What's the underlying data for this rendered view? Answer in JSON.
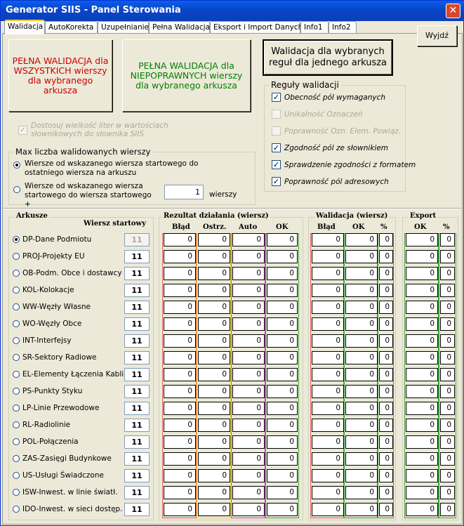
{
  "title": "Generator SIIS - Panel Sterowania",
  "tabs": [
    "Walidacja",
    "AutoKorekta",
    "Uzupełnianie",
    "Pełna Walidacja",
    "Eksport i Import Danych",
    "Info1",
    "Info2"
  ],
  "exit_label": "Wyjdź",
  "buttons": {
    "full_all": "PEŁNA WALIDACJA dla WSZYSTKICH wierszy dla wybranego arkusza",
    "full_invalid": "PEŁNA WALIDACJA dla NIEPOPRAWNYCH wierszy dla wybranego arkusza",
    "selected_rules": "Walidacja dla wybranych reguł dla jednego arkusza"
  },
  "colors": {
    "red_text": "#cc0000",
    "green_text": "#008000"
  },
  "adjust_case": "Dostosuj wielkość liter w wartościach słownikowych do słownika SIIS",
  "rules": {
    "legend": "Reguły walidacji",
    "items": [
      {
        "label": "Obecność pól wymaganych",
        "checked": true,
        "enabled": true
      },
      {
        "label": "Unikalność Oznaczeń",
        "checked": false,
        "enabled": false
      },
      {
        "label": "Poprawność Ozn. Elem. Powiąz.",
        "checked": false,
        "enabled": false
      },
      {
        "label": "Zgodność pól ze słownikiem",
        "checked": true,
        "enabled": true
      },
      {
        "label": "Sprawdzenie zgodności z formatem",
        "checked": true,
        "enabled": true
      },
      {
        "label": "Poprawność pól adresowych",
        "checked": true,
        "enabled": true
      }
    ]
  },
  "maxrows": {
    "legend": "Max liczba walidowanych wierszy",
    "opt1": "Wiersze od wskazanego wiersza startowego do ostatniego wiersza na arkuszu",
    "opt2": "Wiersze od wskazanego wiersza startowego do wiersza startowego +",
    "count": "1",
    "suffix": "wierszy"
  },
  "headers": {
    "arkusze": "Arkusze",
    "wiersz_startowy": "Wiersz startowy",
    "rezultat": "Rezultat działania (wiersz)",
    "blad": "Błąd",
    "ostrz": "Ostrz.",
    "auto": "Auto",
    "ok": "OK",
    "walidacja": "Walidacja (wiersz)",
    "pct": "%",
    "export": "Export"
  },
  "sheets": [
    {
      "name": "DP-Dane Podmiotu",
      "start": "11",
      "selected": true
    },
    {
      "name": "PROJ-Projekty EU",
      "start": "11"
    },
    {
      "name": "OB-Podm. Obce i dostawcy",
      "start": "11"
    },
    {
      "name": "KOL-Kolokacje",
      "start": "11"
    },
    {
      "name": "WW-Węzły Własne",
      "start": "11"
    },
    {
      "name": "WO-Węzły Obce",
      "start": "11"
    },
    {
      "name": "INT-Interfejsy",
      "start": "11"
    },
    {
      "name": "SR-Sektory Radiowe",
      "start": "11"
    },
    {
      "name": "EL-Elementy Łączenia Kabli",
      "start": "11"
    },
    {
      "name": "PS-Punkty Styku",
      "start": "11"
    },
    {
      "name": "LP-Linie Przewodowe",
      "start": "11"
    },
    {
      "name": "RL-Radiolinie",
      "start": "11"
    },
    {
      "name": "POL-Połączenia",
      "start": "11"
    },
    {
      "name": "ZAS-Zasięgi Budynkowe",
      "start": "11"
    },
    {
      "name": "US-Usługi Świadczone",
      "start": "11"
    },
    {
      "name": "ISW-Inwest. w linie światł.",
      "start": "11"
    },
    {
      "name": "IDO-Inwest. w sieci dostęp.",
      "start": "11"
    }
  ],
  "zero": "0"
}
